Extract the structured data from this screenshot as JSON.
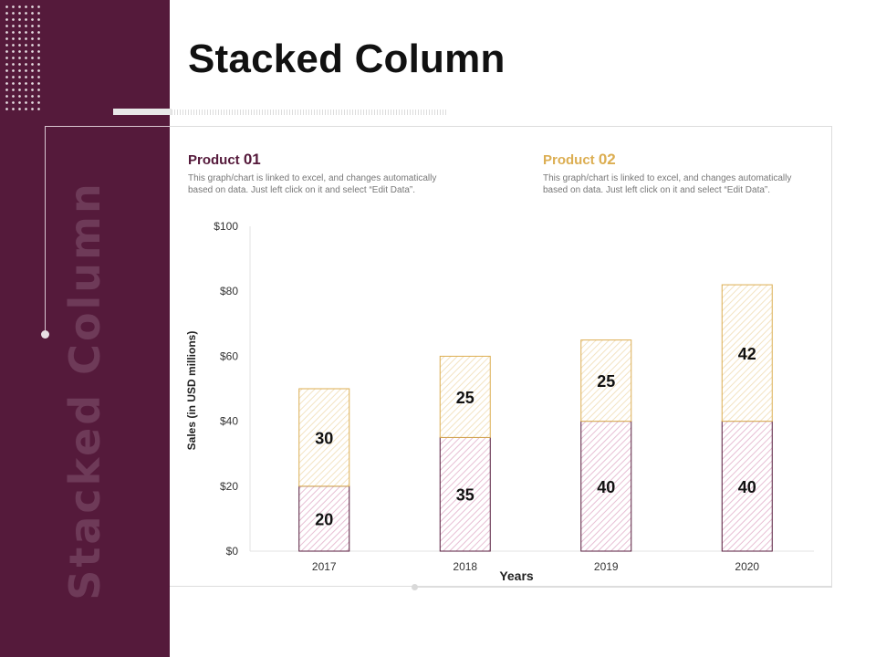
{
  "slide": {
    "title": "Stacked Column",
    "sidebar_text": "Stacked Column"
  },
  "products": [
    {
      "head_text": "Product ",
      "head_num": "01",
      "description": "This graph/chart is linked to excel, and changes automatically based on data. Just left click on it and select “Edit Data”."
    },
    {
      "head_text": "Product ",
      "head_num": "02",
      "description": "This graph/chart is linked to excel, and changes automatically based on data. Just left click on it and select “Edit Data”."
    }
  ],
  "colors": {
    "sidebar": "#551a3b",
    "product01": "#551a3b",
    "product02": "#dcae52",
    "stripe01": "#e7bfd4",
    "stripe02": "#f3e3c2"
  },
  "chart_data": {
    "type": "bar",
    "stacked": true,
    "categories": [
      "2017",
      "2018",
      "2019",
      "2020"
    ],
    "series": [
      {
        "name": "Product 01",
        "values": [
          20,
          35,
          40,
          40
        ]
      },
      {
        "name": "Product 02",
        "values": [
          30,
          25,
          25,
          42
        ]
      }
    ],
    "xlabel": "Years",
    "ylabel": "Sales (in USD millions)",
    "ylim": [
      0,
      100
    ],
    "yticks": [
      0,
      20,
      40,
      60,
      80,
      100
    ],
    "ytick_labels": [
      "$0",
      "$20",
      "$40",
      "$60",
      "$80",
      "$100"
    ],
    "grid": false
  }
}
